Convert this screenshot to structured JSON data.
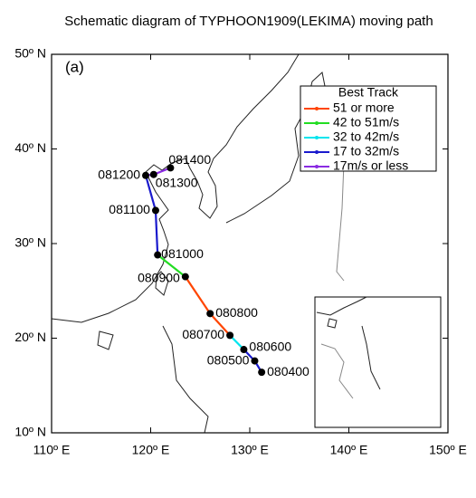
{
  "title": "Schematic diagram of TYPHOON1909(LEKIMA) moving path",
  "panel_label": "(a)",
  "map": {
    "xlim": [
      110,
      150
    ],
    "ylim": [
      10,
      50
    ],
    "xticks": [
      {
        "value": 110,
        "label": "110º E"
      },
      {
        "value": 120,
        "label": "120º E"
      },
      {
        "value": 130,
        "label": "130º E"
      },
      {
        "value": 140,
        "label": "140º E"
      },
      {
        "value": 150,
        "label": "150º E"
      }
    ],
    "yticks": [
      {
        "value": 10,
        "label": "10º N"
      },
      {
        "value": 20,
        "label": "20º N"
      },
      {
        "value": 30,
        "label": "30º N"
      },
      {
        "value": 40,
        "label": "40º N"
      },
      {
        "value": 50,
        "label": "50º N"
      }
    ]
  },
  "legend": {
    "title": "Best Track",
    "entries": [
      {
        "label": "51 or more",
        "color": "#ff4500"
      },
      {
        "label": "42 to 51m/s",
        "color": "#22dd22"
      },
      {
        "label": "32 to 42m/s",
        "color": "#00e5ee"
      },
      {
        "label": "17 to 32m/s",
        "color": "#1a1acd"
      },
      {
        "label": "17m/s or less",
        "color": "#8a2be2"
      }
    ]
  },
  "track": [
    {
      "label": "080400",
      "lon": 131.2,
      "lat": 16.4,
      "category": 4
    },
    {
      "label": "080500",
      "lon": 130.5,
      "lat": 17.6,
      "category": 3
    },
    {
      "label": "080600",
      "lon": 129.4,
      "lat": 18.8,
      "category": 3
    },
    {
      "label": "080700",
      "lon": 128.0,
      "lat": 20.3,
      "category": 2
    },
    {
      "label": "080800",
      "lon": 126.0,
      "lat": 22.6,
      "category": 0
    },
    {
      "label": "080900",
      "lon": 123.5,
      "lat": 26.5,
      "category": 0
    },
    {
      "label": "081000",
      "lon": 120.7,
      "lat": 28.8,
      "category": 1
    },
    {
      "label": "081100",
      "lon": 120.5,
      "lat": 33.5,
      "category": 3
    },
    {
      "label": "081200",
      "lon": 119.5,
      "lat": 37.2,
      "category": 3
    },
    {
      "label": "081300",
      "lon": 120.3,
      "lat": 37.3,
      "category": 4
    },
    {
      "label": "081400",
      "lon": 122.0,
      "lat": 38.0,
      "category": 4
    }
  ]
}
